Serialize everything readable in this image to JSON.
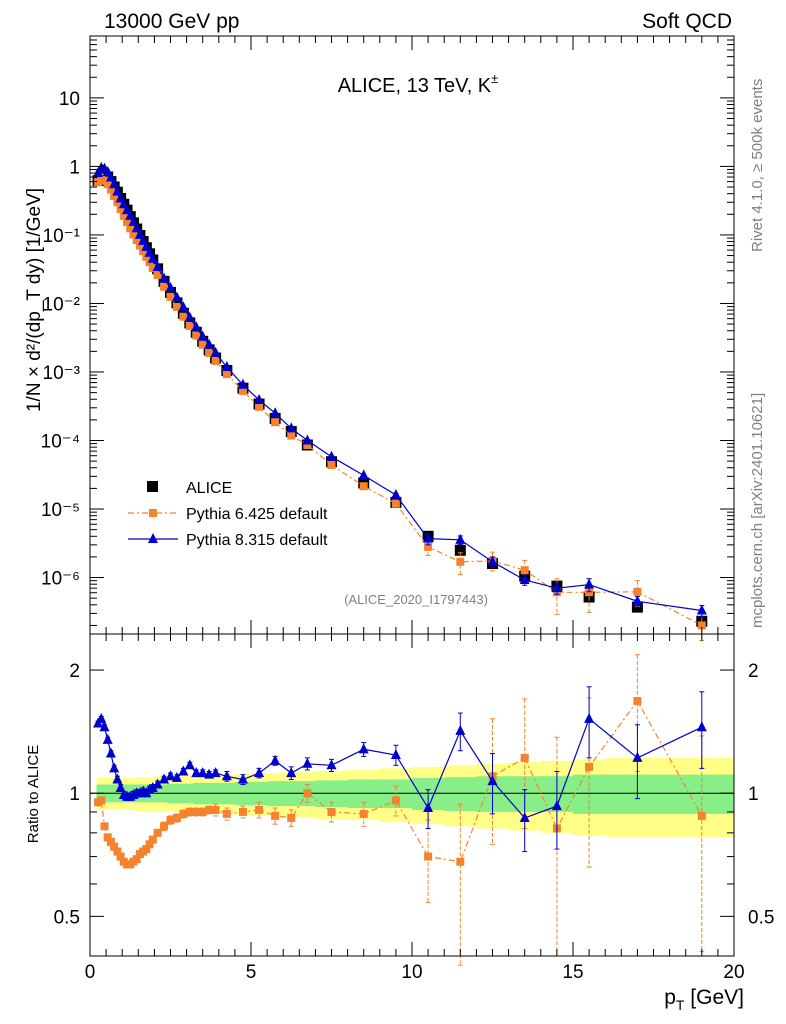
{
  "header": {
    "left": "13000 GeV pp",
    "right": "Soft QCD"
  },
  "side": {
    "rivet": "Rivet 4.1.0, ≥ 500k events",
    "mcplots": "mcplots.cern.ch [arXiv:2401.10621]"
  },
  "colors": {
    "data": "#000000",
    "pythia6": "#f5822d",
    "pythia8": "#0000cc",
    "band_outer": "#ffff88",
    "band_inner": "#88ee88"
  },
  "chart_data": [
    {
      "type": "scatter",
      "panel": "main",
      "title": "ALICE, 13 TeV, K±",
      "title_main": "ALICE, 13 TeV, K",
      "title_sup": "±",
      "ylabel": "1/N × d²/(dp_T dy) [1/GeV]",
      "yscale": "log",
      "xlim": [
        0,
        20
      ],
      "ylim": [
        1.5e-07,
        80
      ],
      "yticks": [
        "10⁻⁶",
        "10⁻⁵",
        "10⁻⁴",
        "10⁻³",
        "10⁻²",
        "10⁻¹",
        "1",
        "10"
      ],
      "analysis_id": "(ALICE_2020_I1797443)",
      "legend_position": "lower-left",
      "legend": [
        "ALICE",
        "Pythia 6.425 default",
        "Pythia 8.315 default"
      ],
      "x": [
        0.25,
        0.35,
        0.45,
        0.55,
        0.65,
        0.75,
        0.85,
        0.95,
        1.05,
        1.15,
        1.25,
        1.35,
        1.45,
        1.55,
        1.65,
        1.75,
        1.85,
        1.95,
        2.1,
        2.3,
        2.5,
        2.7,
        2.9,
        3.1,
        3.3,
        3.5,
        3.7,
        3.9,
        4.25,
        4.75,
        5.25,
        5.75,
        6.25,
        6.75,
        7.5,
        8.5,
        9.5,
        10.5,
        11.5,
        12.5,
        13.5,
        14.5,
        15.5,
        17.0,
        19.0
      ],
      "series": [
        {
          "name": "ALICE",
          "values": [
            0.62,
            0.72,
            0.75,
            0.7,
            0.6,
            0.5,
            0.42,
            0.34,
            0.28,
            0.23,
            0.185,
            0.15,
            0.122,
            0.098,
            0.08,
            0.065,
            0.053,
            0.043,
            0.032,
            0.021,
            0.0145,
            0.0102,
            0.0072,
            0.0052,
            0.0038,
            0.0028,
            0.0021,
            0.0016,
            0.00105,
            0.00058,
            0.00034,
            0.00021,
            0.000135,
            8.6e-05,
            4.9e-05,
            2.4e-05,
            1.25e-05,
            4e-06,
            2.5e-06,
            1.6e-06,
            1.05e-06,
            7.5e-07,
            5.2e-07,
            3.7e-07,
            2.3e-07
          ],
          "err_lo": [],
          "err_hi": []
        },
        {
          "name": "Pythia 6.425 default",
          "values": [
            0.59,
            0.69,
            0.62,
            0.55,
            0.46,
            0.37,
            0.3,
            0.24,
            0.19,
            0.155,
            0.125,
            0.102,
            0.084,
            0.07,
            0.058,
            0.048,
            0.04,
            0.033,
            0.026,
            0.0175,
            0.0125,
            0.0089,
            0.0064,
            0.0047,
            0.0034,
            0.0025,
            0.0019,
            0.00145,
            0.00093,
            0.00053,
            0.00031,
            0.000185,
            0.000118,
            8.6e-05,
            4.4e-05,
            2.15e-05,
            1.2e-05,
            2.8e-06,
            1.7e-06,
            1.75e-06,
            1.28e-06,
            6.1e-07,
            6.1e-07,
            6.2e-07,
            2e-07
          ],
          "err_lo": [
            0.01,
            0.01,
            0.01,
            0.01,
            0.01,
            0.01,
            0.01,
            0.005,
            0.004,
            0.003,
            0.002,
            0.002,
            0.002,
            0.001,
            0.001,
            0.001,
            0.001,
            0.001,
            0.0005,
            0.0004,
            0.0003,
            0.0002,
            0.00015,
            0.0001,
            8e-05,
            6e-05,
            5e-05,
            4e-05,
            3e-05,
            1.5e-05,
            1e-05,
            7e-06,
            5e-06,
            4e-06,
            2.5e-06,
            1.5e-06,
            1e-06,
            7e-07,
            6e-07,
            5e-07,
            4e-07,
            3.2e-07,
            3e-07,
            2.4e-07,
            8e-08
          ],
          "err_hi": [
            0.01,
            0.01,
            0.01,
            0.01,
            0.01,
            0.01,
            0.01,
            0.005,
            0.004,
            0.003,
            0.002,
            0.002,
            0.002,
            0.001,
            0.001,
            0.001,
            0.001,
            0.001,
            0.0005,
            0.0004,
            0.0003,
            0.0002,
            0.00015,
            0.0001,
            8e-05,
            6e-05,
            5e-05,
            4e-05,
            3e-05,
            1.5e-05,
            1e-05,
            7e-06,
            5e-06,
            4e-06,
            2.5e-06,
            1.5e-06,
            1e-06,
            7e-07,
            6e-07,
            6e-07,
            5e-07,
            3.5e-07,
            3.5e-07,
            2.8e-07,
            1.2e-07
          ]
        },
        {
          "name": "Pythia 8.315 default",
          "values": [
            0.8,
            0.95,
            0.93,
            0.83,
            0.69,
            0.55,
            0.43,
            0.34,
            0.28,
            0.23,
            0.19,
            0.155,
            0.125,
            0.1,
            0.082,
            0.067,
            0.055,
            0.045,
            0.034,
            0.023,
            0.0168,
            0.0122,
            0.0088,
            0.0062,
            0.0045,
            0.0033,
            0.0025,
            0.0019,
            0.00118,
            0.00065,
            0.00039,
            0.00025,
            0.00015,
            0.0001,
            5.8e-05,
            3.1e-05,
            1.6e-05,
            3.7e-06,
            3.55e-06,
            1.7e-06,
            9.2e-07,
            7e-07,
            7.9e-07,
            4.5e-07,
            3.3e-07
          ],
          "err_lo": [
            0.01,
            0.01,
            0.01,
            0.01,
            0.01,
            0.01,
            0.01,
            0.005,
            0.004,
            0.003,
            0.002,
            0.002,
            0.002,
            0.001,
            0.001,
            0.001,
            0.001,
            0.001,
            0.0005,
            0.0004,
            0.0003,
            0.0002,
            0.00015,
            0.0001,
            8e-05,
            6e-05,
            5e-05,
            4e-05,
            3e-05,
            1.5e-05,
            1e-05,
            7e-06,
            5e-06,
            4e-06,
            2.5e-06,
            1.5e-06,
            1e-06,
            7e-07,
            5e-07,
            3e-07,
            1.5e-07,
            1.3e-07,
            1.7e-07,
            8e-08,
            6e-08
          ],
          "err_hi": [
            0.01,
            0.01,
            0.01,
            0.01,
            0.01,
            0.01,
            0.01,
            0.005,
            0.004,
            0.003,
            0.002,
            0.002,
            0.002,
            0.001,
            0.001,
            0.001,
            0.001,
            0.001,
            0.0005,
            0.0004,
            0.0003,
            0.0002,
            0.00015,
            0.0001,
            8e-05,
            6e-05,
            5e-05,
            4e-05,
            3e-05,
            1.5e-05,
            1e-05,
            7e-06,
            5e-06,
            4e-06,
            2.5e-06,
            1.5e-06,
            1e-06,
            7e-07,
            5e-07,
            3e-07,
            1.5e-07,
            1.3e-07,
            1.7e-07,
            8e-08,
            6e-08
          ]
        }
      ]
    },
    {
      "type": "line",
      "panel": "ratio",
      "ylabel": "Ratio to ALICE",
      "xlabel": "p_T [GeV]",
      "xlabel_main": "p",
      "xlabel_sub": "T",
      "xlabel_unit": " [GeV]",
      "yscale": "log",
      "xlim": [
        0,
        20
      ],
      "ylim": [
        0.4,
        2.45
      ],
      "yticks": [
        "0.5",
        "1",
        "2"
      ],
      "xticks": [
        "0",
        "5",
        "10",
        "15",
        "20"
      ],
      "x": [
        0.25,
        0.35,
        0.45,
        0.55,
        0.65,
        0.75,
        0.85,
        0.95,
        1.05,
        1.15,
        1.25,
        1.35,
        1.45,
        1.55,
        1.65,
        1.75,
        1.85,
        1.95,
        2.1,
        2.3,
        2.5,
        2.7,
        2.9,
        3.1,
        3.3,
        3.5,
        3.7,
        3.9,
        4.25,
        4.75,
        5.25,
        5.75,
        6.25,
        6.75,
        7.5,
        8.5,
        9.5,
        10.5,
        11.5,
        12.5,
        13.5,
        14.5,
        15.5,
        17.0,
        19.0
      ],
      "band": {
        "x_edges": [
          0.2,
          0.3,
          0.4,
          0.5,
          0.6,
          0.7,
          0.8,
          0.9,
          1.0,
          1.1,
          1.2,
          1.3,
          1.4,
          1.5,
          1.6,
          1.7,
          1.8,
          1.9,
          2.0,
          2.2,
          2.4,
          2.6,
          2.8,
          3.0,
          3.2,
          3.4,
          3.6,
          3.8,
          4.0,
          4.5,
          5.0,
          5.5,
          6.0,
          6.5,
          7.0,
          8.0,
          9.0,
          10.0,
          11.0,
          12.0,
          13.0,
          14.0,
          15.0,
          16.0,
          18.0,
          20.0
        ],
        "inner": [
          0.05,
          0.05,
          0.05,
          0.05,
          0.05,
          0.05,
          0.05,
          0.05,
          0.05,
          0.05,
          0.05,
          0.05,
          0.05,
          0.05,
          0.05,
          0.05,
          0.05,
          0.05,
          0.05,
          0.05,
          0.055,
          0.055,
          0.055,
          0.055,
          0.06,
          0.06,
          0.06,
          0.06,
          0.06,
          0.065,
          0.065,
          0.07,
          0.07,
          0.07,
          0.075,
          0.08,
          0.08,
          0.09,
          0.095,
          0.1,
          0.1,
          0.1,
          0.11,
          0.11,
          0.11
        ],
        "outer": [
          0.09,
          0.09,
          0.09,
          0.09,
          0.09,
          0.09,
          0.09,
          0.09,
          0.09,
          0.09,
          0.09,
          0.09,
          0.095,
          0.095,
          0.095,
          0.095,
          0.095,
          0.095,
          0.1,
          0.1,
          0.1,
          0.1,
          0.105,
          0.105,
          0.105,
          0.11,
          0.11,
          0.11,
          0.11,
          0.115,
          0.12,
          0.12,
          0.125,
          0.13,
          0.135,
          0.14,
          0.15,
          0.16,
          0.17,
          0.18,
          0.19,
          0.2,
          0.21,
          0.22,
          0.22
        ]
      },
      "series": [
        {
          "name": "Pythia 6.425 default",
          "values": [
            0.95,
            0.96,
            0.83,
            0.78,
            0.76,
            0.74,
            0.72,
            0.7,
            0.68,
            0.67,
            0.67,
            0.68,
            0.69,
            0.71,
            0.72,
            0.73,
            0.75,
            0.77,
            0.8,
            0.83,
            0.86,
            0.87,
            0.89,
            0.9,
            0.9,
            0.9,
            0.91,
            0.91,
            0.89,
            0.9,
            0.91,
            0.88,
            0.87,
            1.0,
            0.9,
            0.89,
            0.96,
            0.7,
            0.68,
            1.1,
            1.22,
            0.82,
            1.16,
            1.68,
            0.88
          ],
          "err_lo": [
            0.01,
            0.01,
            0.01,
            0.01,
            0.01,
            0.01,
            0.01,
            0.01,
            0.01,
            0.01,
            0.01,
            0.01,
            0.01,
            0.01,
            0.01,
            0.01,
            0.01,
            0.01,
            0.01,
            0.02,
            0.02,
            0.02,
            0.02,
            0.02,
            0.02,
            0.02,
            0.02,
            0.03,
            0.03,
            0.03,
            0.04,
            0.04,
            0.04,
            0.05,
            0.05,
            0.06,
            0.08,
            0.16,
            0.3,
            0.35,
            0.4,
            0.42,
            0.5,
            0.55,
            0.47
          ],
          "err_hi": [
            0.01,
            0.01,
            0.01,
            0.01,
            0.01,
            0.01,
            0.01,
            0.01,
            0.01,
            0.01,
            0.01,
            0.01,
            0.01,
            0.01,
            0.01,
            0.01,
            0.01,
            0.01,
            0.01,
            0.02,
            0.02,
            0.02,
            0.02,
            0.02,
            0.02,
            0.02,
            0.02,
            0.03,
            0.03,
            0.03,
            0.04,
            0.04,
            0.04,
            0.05,
            0.05,
            0.06,
            0.08,
            0.16,
            0.26,
            0.42,
            0.48,
            0.55,
            0.55,
            0.5,
            0.5
          ]
        },
        {
          "name": "Pythia 8.315 default",
          "values": [
            1.48,
            1.52,
            1.45,
            1.35,
            1.25,
            1.15,
            1.08,
            1.03,
            0.99,
            0.98,
            0.98,
            0.99,
            1.0,
            1.0,
            1.01,
            1.0,
            1.02,
            1.03,
            1.05,
            1.08,
            1.1,
            1.09,
            1.13,
            1.17,
            1.12,
            1.12,
            1.11,
            1.12,
            1.1,
            1.08,
            1.12,
            1.2,
            1.12,
            1.18,
            1.17,
            1.28,
            1.24,
            0.92,
            1.42,
            1.07,
            0.87,
            0.93,
            1.52,
            1.22,
            1.45
          ],
          "err_lo": [
            0.02,
            0.02,
            0.02,
            0.02,
            0.02,
            0.02,
            0.02,
            0.02,
            0.02,
            0.02,
            0.02,
            0.02,
            0.02,
            0.02,
            0.02,
            0.02,
            0.02,
            0.02,
            0.02,
            0.02,
            0.02,
            0.02,
            0.02,
            0.02,
            0.02,
            0.02,
            0.02,
            0.02,
            0.03,
            0.03,
            0.03,
            0.03,
            0.04,
            0.04,
            0.04,
            0.05,
            0.07,
            0.1,
            0.15,
            0.18,
            0.15,
            0.2,
            0.3,
            0.25,
            0.3
          ],
          "err_hi": [
            0.02,
            0.02,
            0.02,
            0.02,
            0.02,
            0.02,
            0.02,
            0.02,
            0.02,
            0.02,
            0.02,
            0.02,
            0.02,
            0.02,
            0.02,
            0.02,
            0.02,
            0.02,
            0.02,
            0.02,
            0.02,
            0.02,
            0.02,
            0.02,
            0.02,
            0.02,
            0.02,
            0.02,
            0.03,
            0.03,
            0.03,
            0.03,
            0.04,
            0.04,
            0.04,
            0.05,
            0.07,
            0.1,
            0.15,
            0.18,
            0.15,
            0.2,
            0.3,
            0.25,
            0.32
          ]
        }
      ]
    }
  ]
}
